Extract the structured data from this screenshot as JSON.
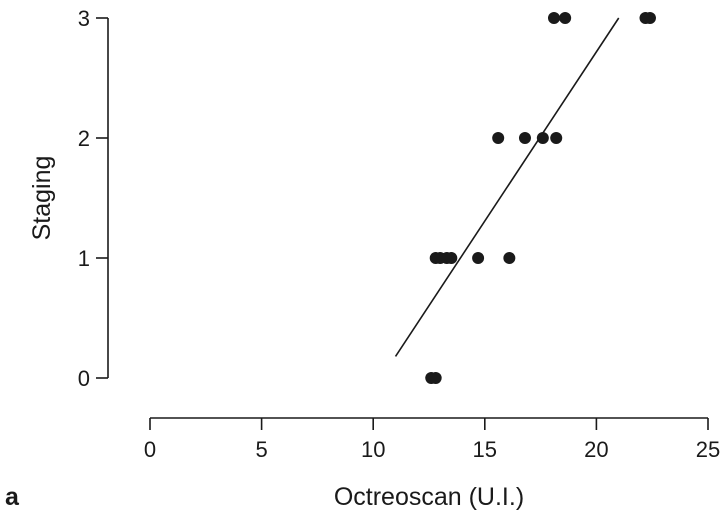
{
  "chart_data": {
    "type": "scatter",
    "panel_label": "a",
    "title": "",
    "xlabel": "Octreoscan (U.I.)",
    "ylabel": "Staging",
    "xlim": [
      0,
      25
    ],
    "ylim": [
      0,
      3
    ],
    "x_ticks": [
      0,
      5,
      10,
      15,
      20,
      25
    ],
    "y_ticks": [
      0,
      1,
      2,
      3
    ],
    "grid": false,
    "legend": "none",
    "series": [
      {
        "points": [
          {
            "x": 12.6,
            "y": 0
          },
          {
            "x": 12.8,
            "y": 0
          },
          {
            "x": 12.8,
            "y": 1
          },
          {
            "x": 13.0,
            "y": 1
          },
          {
            "x": 13.3,
            "y": 1
          },
          {
            "x": 13.5,
            "y": 1
          },
          {
            "x": 14.7,
            "y": 1
          },
          {
            "x": 16.1,
            "y": 1
          },
          {
            "x": 15.6,
            "y": 2
          },
          {
            "x": 16.8,
            "y": 2
          },
          {
            "x": 17.6,
            "y": 2
          },
          {
            "x": 18.2,
            "y": 2
          },
          {
            "x": 18.1,
            "y": 3
          },
          {
            "x": 18.6,
            "y": 3
          },
          {
            "x": 22.2,
            "y": 3
          },
          {
            "x": 22.4,
            "y": 3
          }
        ]
      }
    ],
    "trend_line": {
      "x0": 11.0,
      "y0": 0.18,
      "x1": 21.0,
      "y1": 3.0
    }
  }
}
